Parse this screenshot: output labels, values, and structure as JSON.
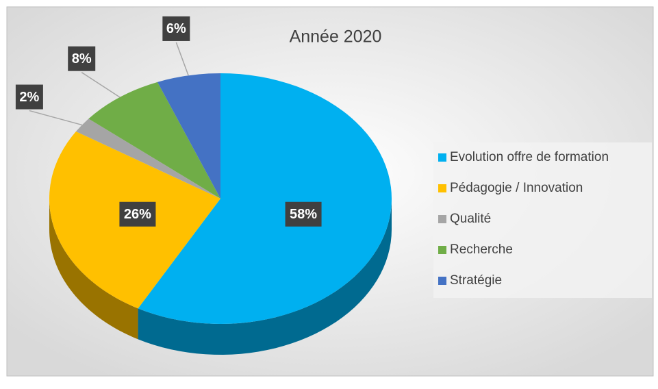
{
  "chart_data": {
    "type": "pie",
    "title": "Année 2020",
    "categories": [
      "Evolution offre de formation",
      "Pédagogie / Innovation",
      "Qualité",
      "Recherche",
      "Stratégie"
    ],
    "values": [
      58,
      26,
      2,
      8,
      6
    ],
    "value_labels": [
      "58%",
      "26%",
      "2%",
      "8%",
      "6%"
    ],
    "colors": [
      "#00b0f0",
      "#ffc000",
      "#a5a5a5",
      "#70ad47",
      "#4472c4"
    ],
    "legend": "right"
  }
}
